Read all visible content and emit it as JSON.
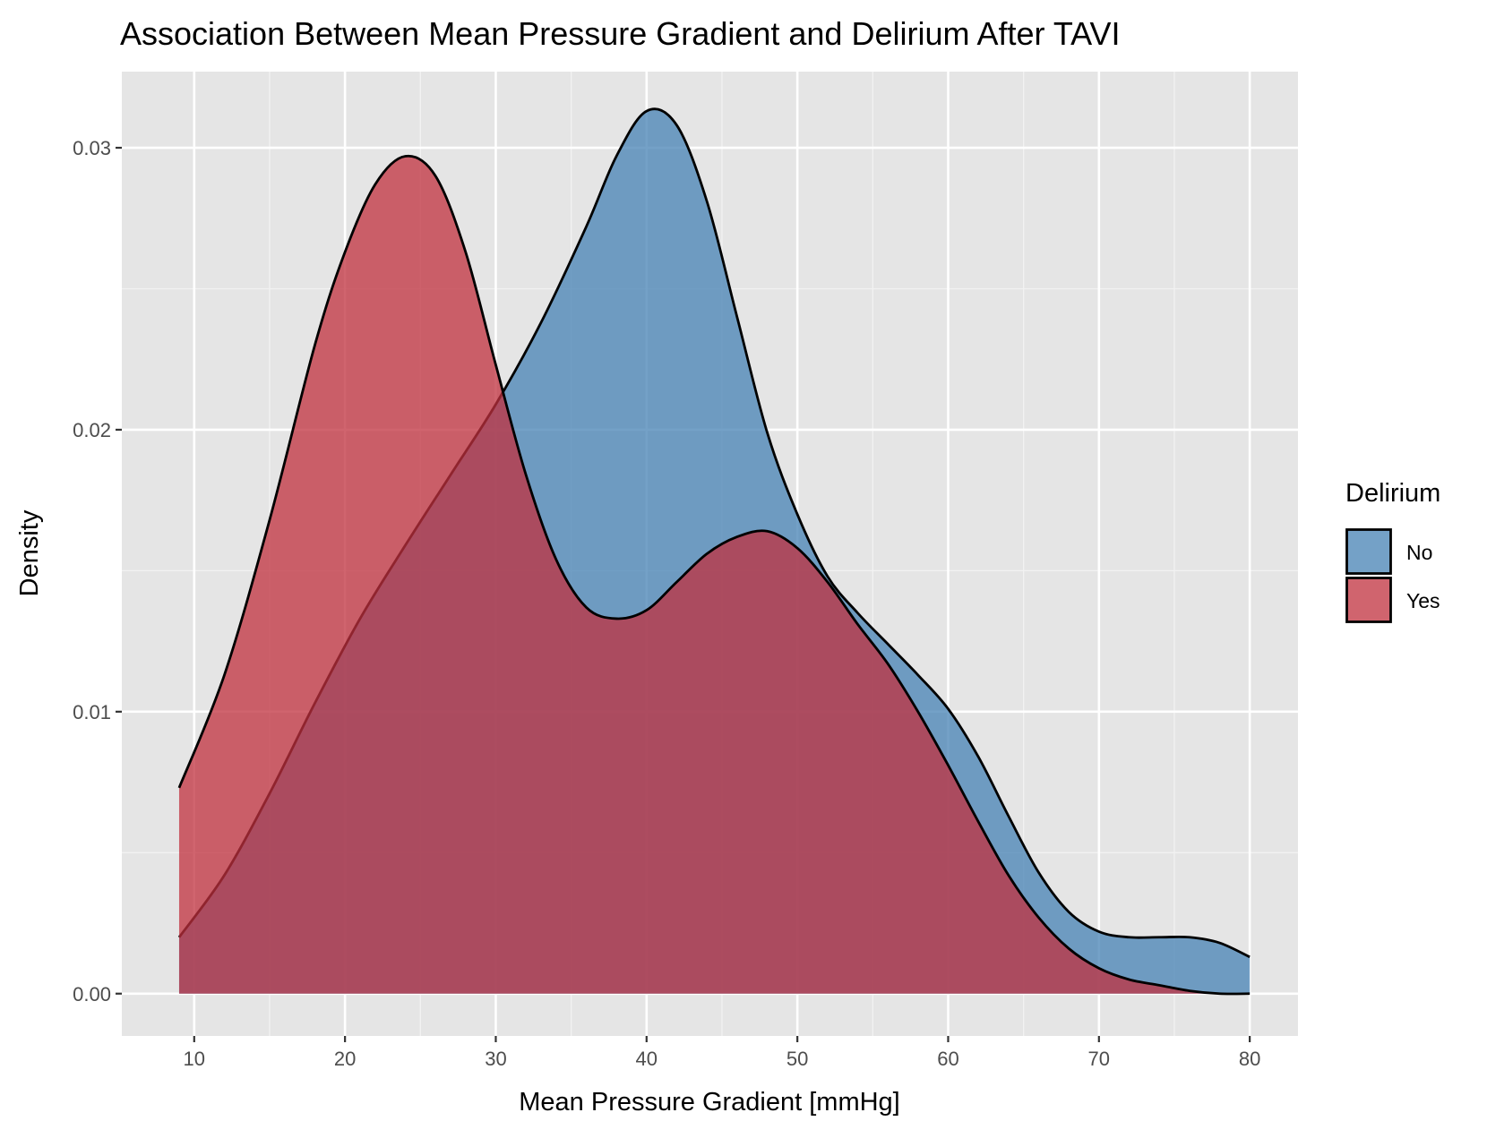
{
  "chart_data": {
    "type": "area",
    "title": "Association Between Mean Pressure Gradient and Delirium After TAVI",
    "xlabel": "Mean Pressure Gradient [mmHg]",
    "ylabel": "Density",
    "xlim": [
      5.2,
      83.2
    ],
    "ylim": [
      -0.0015,
      0.0327
    ],
    "x_ticks": [
      10,
      20,
      30,
      40,
      50,
      60,
      70,
      80
    ],
    "x_tick_labels": [
      "10",
      "20",
      "30",
      "40",
      "50",
      "60",
      "70",
      "80"
    ],
    "y_ticks": [
      0.0,
      0.01,
      0.02,
      0.03
    ],
    "y_tick_labels": [
      "0.00",
      "0.01",
      "0.02",
      "0.03"
    ],
    "grid": true,
    "legend": {
      "title": "Delirium",
      "position": "right"
    },
    "series": [
      {
        "name": "No",
        "fill": "#4682B4",
        "x": [
          9,
          12,
          15,
          18,
          21,
          24,
          27,
          30,
          33,
          36,
          38,
          40,
          42,
          44,
          46,
          48,
          50,
          52,
          54,
          56,
          58,
          60,
          62,
          64,
          66,
          68,
          70,
          72,
          74,
          76,
          78,
          80
        ],
        "y": [
          0.002,
          0.0042,
          0.0071,
          0.0103,
          0.0133,
          0.0159,
          0.0184,
          0.0209,
          0.0238,
          0.0272,
          0.0297,
          0.0313,
          0.0308,
          0.0281,
          0.024,
          0.0199,
          0.017,
          0.0148,
          0.0135,
          0.0124,
          0.0113,
          0.0101,
          0.0084,
          0.0063,
          0.0043,
          0.0029,
          0.0022,
          0.002,
          0.002,
          0.002,
          0.0018,
          0.0013
        ]
      },
      {
        "name": "Yes",
        "fill": "#C0303D",
        "x": [
          9,
          12,
          15,
          18,
          20,
          22,
          24,
          26,
          28,
          30,
          32,
          34,
          36,
          38,
          40,
          42,
          44,
          46,
          48,
          50,
          52,
          54,
          56,
          58,
          60,
          62,
          64,
          66,
          68,
          70,
          72,
          74,
          76,
          78,
          80
        ],
        "y": [
          0.0073,
          0.0113,
          0.0168,
          0.023,
          0.0263,
          0.0287,
          0.0297,
          0.029,
          0.0263,
          0.0223,
          0.0184,
          0.0154,
          0.0137,
          0.0133,
          0.0136,
          0.0146,
          0.0156,
          0.0162,
          0.0164,
          0.0158,
          0.0146,
          0.0131,
          0.0117,
          0.01,
          0.0081,
          0.0061,
          0.0042,
          0.0027,
          0.0016,
          0.0009,
          0.0005,
          0.0003,
          0.0001,
          0.0,
          0.0
        ]
      }
    ]
  }
}
